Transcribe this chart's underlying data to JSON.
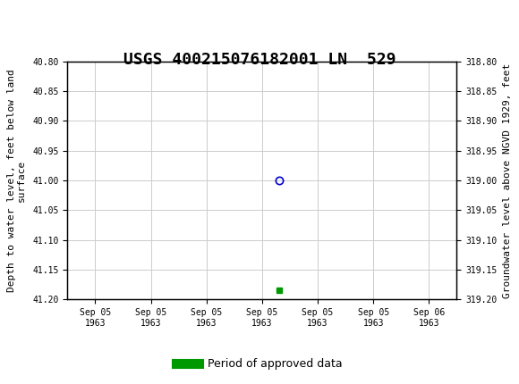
{
  "title": "USGS 400215076182001 LN  529",
  "title_fontsize": 13,
  "header_color": "#006633",
  "background_color": "#ffffff",
  "plot_bg_color": "#ffffff",
  "grid_color": "#cccccc",
  "left_ylabel": "Depth to water level, feet below land\nsurface",
  "right_ylabel": "Groundwater level above NGVD 1929, feet",
  "ylim_left": [
    40.8,
    41.2
  ],
  "ylim_right": [
    318.8,
    319.2
  ],
  "yticks_left": [
    40.8,
    40.85,
    40.9,
    40.95,
    41.0,
    41.05,
    41.1,
    41.15,
    41.2
  ],
  "yticks_right": [
    318.8,
    318.85,
    318.9,
    318.95,
    319.0,
    319.05,
    319.1,
    319.15,
    319.2
  ],
  "data_point_y": 41.0,
  "data_point_color": "#0000cc",
  "data_point_marker": "o",
  "data_point_size": 6,
  "data_point_x": 3.3,
  "approved_marker_x": 3.3,
  "approved_marker_y": 41.185,
  "approved_marker_color": "#009900",
  "approved_marker_size": 5,
  "xtick_labels": [
    "Sep 05\n1963",
    "Sep 05\n1963",
    "Sep 05\n1963",
    "Sep 05\n1963",
    "Sep 05\n1963",
    "Sep 05\n1963",
    "Sep 06\n1963"
  ],
  "xlim": [
    -0.5,
    6.5
  ],
  "legend_label": "Period of approved data",
  "legend_color": "#009900",
  "font_family": "monospace"
}
